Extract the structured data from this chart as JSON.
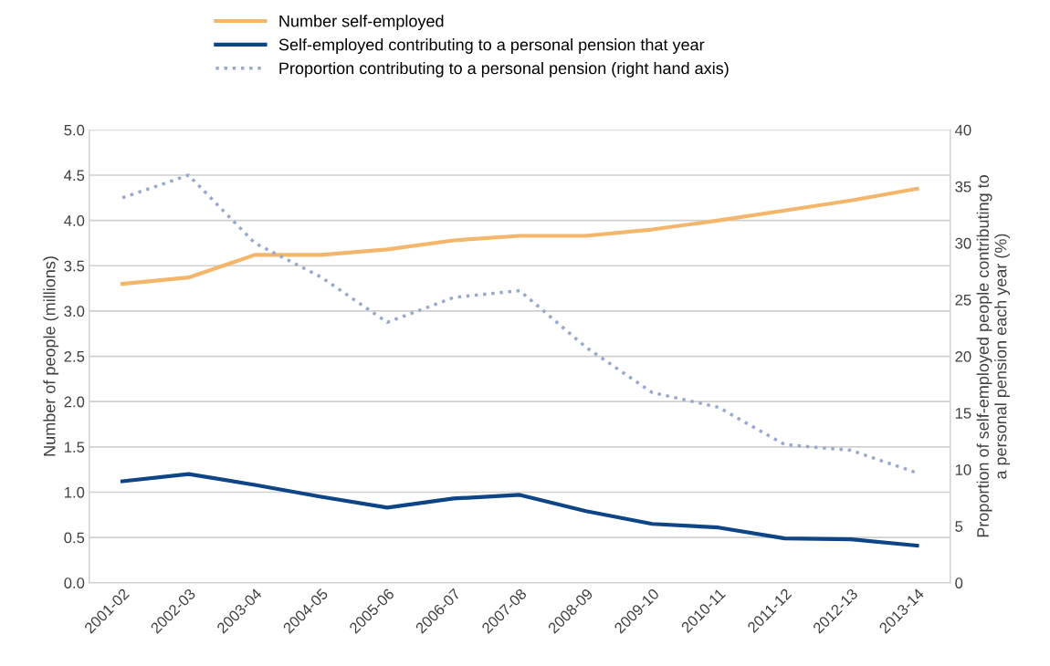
{
  "chart_data": {
    "type": "line",
    "categories": [
      "2001-02",
      "2002-03",
      "2003-04",
      "2004-05",
      "2005-06",
      "2006-07",
      "2007-08",
      "2008-09",
      "2009-10",
      "2010-11",
      "2011-12",
      "2012-13",
      "2013-14"
    ],
    "series": [
      {
        "name": "Number self-employed",
        "color": "#f4b66a",
        "line_style": "solid",
        "values": [
          3.3,
          3.37,
          3.62,
          3.62,
          3.68,
          3.78,
          3.83,
          3.83,
          3.9,
          4.0,
          4.11,
          4.22,
          4.35
        ]
      },
      {
        "name": "Self-employed contributing to a personal pension that year",
        "color": "#0d4586",
        "line_style": "solid",
        "values": [
          1.12,
          1.2,
          1.08,
          0.95,
          0.83,
          0.93,
          0.97,
          0.79,
          0.65,
          0.61,
          0.49,
          0.48,
          0.41
        ]
      },
      {
        "name": "Proportion contributing to a personal pension (right hand axis)",
        "color": "#99a9cc",
        "line_style": "dotted",
        "axis": "y2",
        "values": [
          34.0,
          36.0,
          30.0,
          27.0,
          23.0,
          25.2,
          25.8,
          20.8,
          16.8,
          15.5,
          12.2,
          11.7,
          9.7
        ]
      }
    ],
    "ylabel": "Number of people (millions)",
    "y2label": "Proportion of self-employed people contributing to\na personal pension each year (%)",
    "ylim": [
      0,
      5
    ],
    "yticks": [
      {
        "value": 0,
        "label": "0.0"
      },
      {
        "value": 0.5,
        "label": "0.5"
      },
      {
        "value": 1,
        "label": "1.0"
      },
      {
        "value": 1.5,
        "label": "1.5"
      },
      {
        "value": 2,
        "label": "2.0"
      },
      {
        "value": 2.5,
        "label": "2.5"
      },
      {
        "value": 3,
        "label": "3.0"
      },
      {
        "value": 3.5,
        "label": "3.5"
      },
      {
        "value": 4,
        "label": "4.0"
      },
      {
        "value": 4.5,
        "label": "4.5"
      },
      {
        "value": 5,
        "label": "5.0"
      }
    ],
    "y2lim": [
      0,
      40
    ],
    "y2ticks": [
      0,
      5,
      10,
      15,
      20,
      25,
      30,
      35,
      40
    ],
    "grid": "y",
    "legend": "top"
  }
}
